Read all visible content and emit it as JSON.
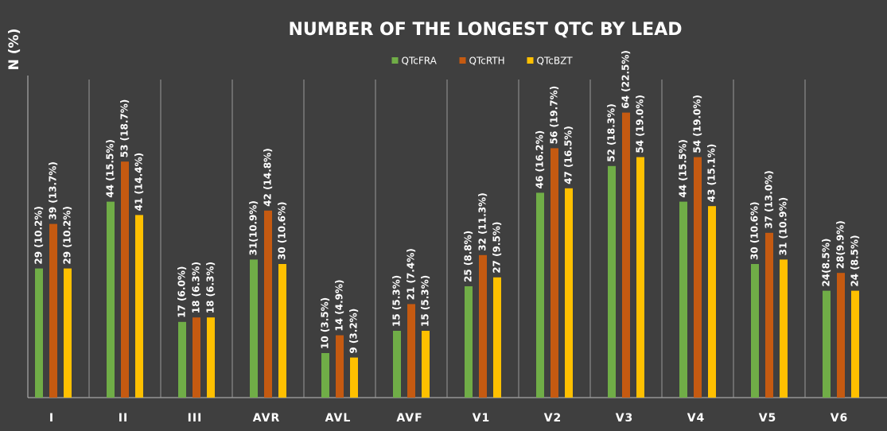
{
  "chart_data": {
    "type": "bar",
    "title": "NUMBER OF THE LONGEST QTC BY LEAD",
    "y_label": "N (%)",
    "categories": [
      "I",
      "II",
      "III",
      "AVR",
      "AVL",
      "AVF",
      "V1",
      "V2",
      "V3",
      "V4",
      "V5",
      "V6"
    ],
    "series": [
      {
        "name": "QTcFRA",
        "color": "#70ad47",
        "values": [
          29,
          44,
          17,
          31,
          10,
          15,
          25,
          46,
          52,
          44,
          30,
          24
        ],
        "value_labels": [
          "29 (10.2%)",
          "44 (15.5%)",
          "17 (6.0%)",
          "31(10.9%)",
          "10 (3.5%)",
          "15 (5.3%)",
          "25 (8.8%)",
          "46 (16.2%)",
          "52 (18.3%)",
          "44 (15.5%)",
          "30 (10.6%)",
          "24(8.5%)"
        ]
      },
      {
        "name": "QTcRTH",
        "color": "#c55a11",
        "values": [
          39,
          53,
          18,
          42,
          14,
          21,
          32,
          56,
          64,
          54,
          37,
          28
        ],
        "value_labels": [
          "39 (13.7%)",
          "53 (18.7%)",
          "18 (6.3%)",
          "42 (14.8%)",
          "14 (4.9%)",
          "21 (7.4%)",
          "32 (11.3%)",
          "56 (19.7%)",
          "64 (22.5%)",
          "54 (19.0%)",
          "37 (13.0%)",
          "28(9.9%)"
        ]
      },
      {
        "name": "QTcBZT",
        "color": "#ffc000",
        "values": [
          29,
          41,
          18,
          30,
          9,
          15,
          27,
          47,
          54,
          43,
          31,
          24
        ],
        "value_labels": [
          "29 (10.2%)",
          "41 (14.4%)",
          "18 (6.3%)",
          "30 (10.6%)",
          "9 (3.2%)",
          "15 (5.3%)",
          "27 (9.5%)",
          "47 (16.5%)",
          "54 (19.0%)",
          "43 (15.1%)",
          "31 (10.9%)",
          "24 (8.5%)"
        ]
      }
    ],
    "ylim": [
      0,
      70
    ],
    "legend": "top"
  }
}
